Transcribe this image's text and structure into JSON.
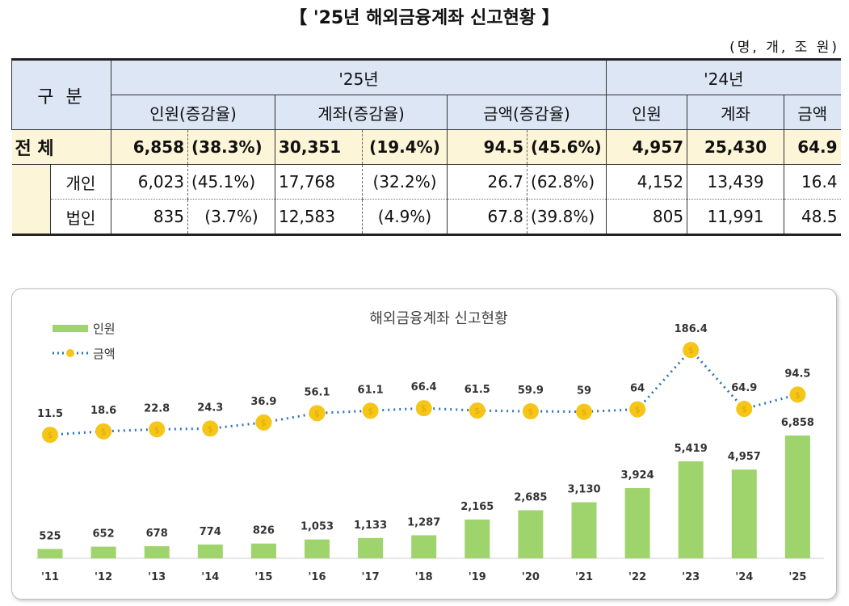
{
  "title": "【 '25년 해외금융계좌 신고현황 】",
  "unit": "(명, 개, 조 원)",
  "table": {
    "gubun": "구 분",
    "y25": "'25년",
    "y24": "'24년",
    "h25": [
      "인원(증감율)",
      "계좌(증감율)",
      "금액(증감율)"
    ],
    "h24": [
      "인원",
      "계좌",
      "금액"
    ],
    "rows": [
      {
        "label": "전 체",
        "c": [
          "6,858",
          "(38.3%)",
          "30,351",
          "(19.4%)",
          "94.5",
          "(45.6%)",
          "4,957",
          "25,430",
          "64.9"
        ]
      },
      {
        "label": "개인",
        "c": [
          "6,023",
          "(45.1%)",
          "17,768",
          "(32.2%)",
          "26.7",
          "(62.8%)",
          "4,152",
          "13,439",
          "16.4"
        ]
      },
      {
        "label": "법인",
        "c": [
          "835",
          "(3.7%)",
          "12,583",
          "(4.9%)",
          "67.8",
          "(39.8%)",
          "805",
          "11,991",
          "48.5"
        ]
      }
    ]
  },
  "chart_data": {
    "type": "bar+line",
    "title": "해외금융계좌 신고현황",
    "legend_placement": "top-left",
    "categories": [
      "'11",
      "'12",
      "'13",
      "'14",
      "'15",
      "'16",
      "'17",
      "'18",
      "'19",
      "'20",
      "'21",
      "'22",
      "'23",
      "'24",
      "'25"
    ],
    "series": [
      {
        "name": "인원",
        "type": "bar",
        "color": "#9fd36b",
        "values": [
          525,
          652,
          678,
          774,
          826,
          1053,
          1133,
          1287,
          2165,
          2685,
          3130,
          3924,
          5419,
          4957,
          6858
        ],
        "labels": [
          "525",
          "652",
          "678",
          "774",
          "826",
          "1,053",
          "1,133",
          "1,287",
          "2,165",
          "2,685",
          "3,130",
          "3,924",
          "5,419",
          "4,957",
          "6,858"
        ]
      },
      {
        "name": "금액",
        "type": "line",
        "color": "#f5c518",
        "line_color": "#2e75b6",
        "values": [
          11.5,
          18.6,
          22.8,
          24.3,
          36.9,
          56.1,
          61.1,
          66.4,
          61.5,
          59.9,
          59,
          64,
          186.4,
          64.9,
          94.5
        ],
        "labels": [
          "11.5",
          "18.6",
          "22.8",
          "24.3",
          "36.9",
          "56.1",
          "61.1",
          "66.4",
          "61.5",
          "59.9",
          "59",
          "64",
          "186.4",
          "64.9",
          "94.5"
        ]
      }
    ]
  }
}
